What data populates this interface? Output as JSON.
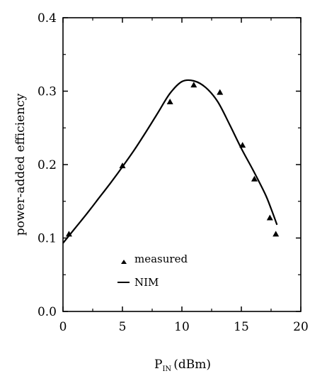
{
  "chart_data": {
    "type": "line",
    "xlabel_main": "P",
    "xlabel_sub": "IN",
    "xlabel_unit": "(dBm)",
    "ylabel": "power-added efficiency",
    "xlim": [
      0,
      20
    ],
    "ylim": [
      0.0,
      0.4
    ],
    "x_ticks": [
      "0",
      "5",
      "10",
      "15",
      "20"
    ],
    "y_ticks": [
      "0.0",
      "0.1",
      "0.2",
      "0.3",
      "0.4"
    ],
    "series": [
      {
        "name": "measured",
        "style": "triangle-markers",
        "x": [
          0.5,
          5.0,
          9.0,
          11.0,
          13.2,
          15.1,
          16.1,
          17.4,
          17.9
        ],
        "y": [
          0.105,
          0.198,
          0.285,
          0.308,
          0.298,
          0.226,
          0.18,
          0.127,
          0.105
        ]
      },
      {
        "name": "NIM",
        "style": "solid-line",
        "x": [
          0.0,
          1.0,
          2.0,
          3.0,
          4.0,
          5.0,
          6.0,
          7.0,
          8.0,
          9.0,
          10.0,
          11.0,
          12.0,
          13.0,
          14.0,
          15.0,
          16.0,
          17.0,
          17.5,
          18.0
        ],
        "y": [
          0.093,
          0.113,
          0.133,
          0.154,
          0.175,
          0.197,
          0.22,
          0.245,
          0.271,
          0.297,
          0.313,
          0.314,
          0.305,
          0.286,
          0.255,
          0.222,
          0.192,
          0.16,
          0.14,
          0.118
        ]
      }
    ],
    "legend": {
      "position": "lower-left-inside",
      "items": [
        {
          "label": "measured",
          "marker": "triangle"
        },
        {
          "label": "NIM",
          "marker": "line"
        }
      ]
    }
  }
}
